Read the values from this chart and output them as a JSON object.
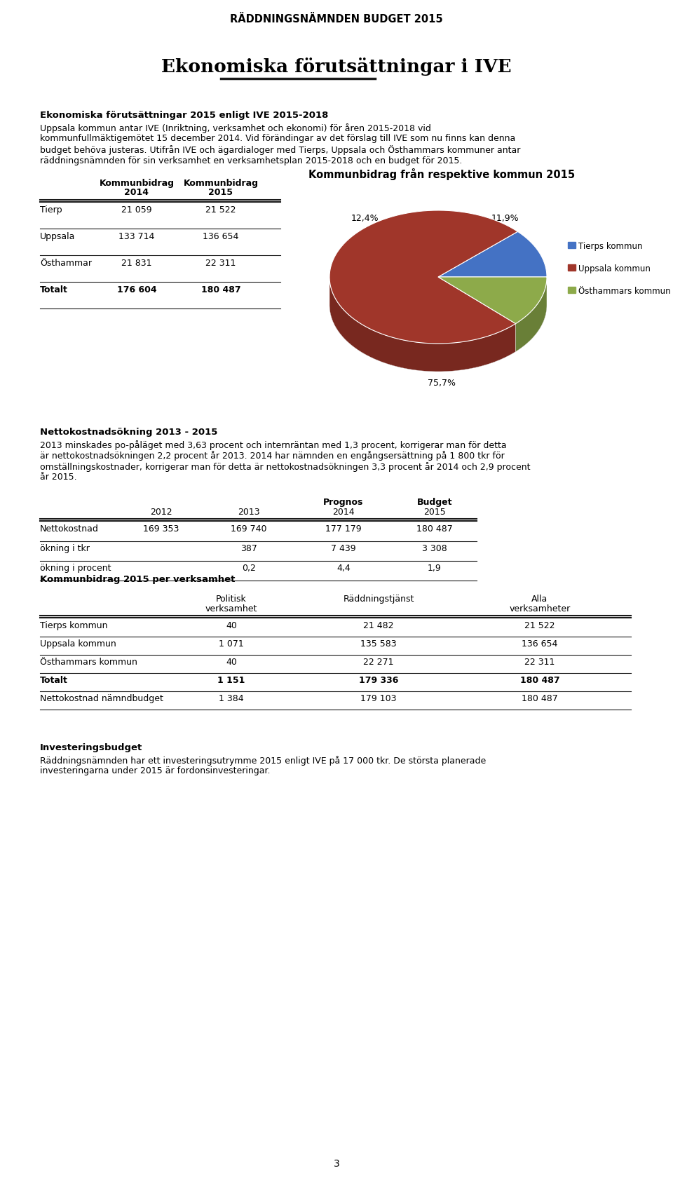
{
  "page_title": "RÄDDNINGSNÄMNDEN BUDGET 2015",
  "section_title": "Ekonomiska förutsättningar i IVE",
  "intro_bold": "Ekonomiska förutsättningar 2015 enligt IVE 2015-2018",
  "intro_lines": [
    "Uppsala kommun antar IVE (Inriktning, verksamhet och ekonomi) för åren 2015-2018 vid",
    "kommunfullmäktigemötet 15 december 2014. Vid förändingar av det förslag till IVE som nu finns kan denna",
    "budget behöva justeras. Utifrån IVE och ägardialoger med Tierps, Uppsala och Östhammars kommuner antar",
    "räddningsnämnden för sin verksamhet en verksamhetsplan 2015-2018 och en budget för 2015."
  ],
  "table_rows": [
    [
      "Tierp",
      "21 059",
      "21 522"
    ],
    [
      "Uppsala",
      "133 714",
      "136 654"
    ],
    [
      "Östhammar",
      "21 831",
      "22 311"
    ],
    [
      "Totalt",
      "176 604",
      "180 487"
    ]
  ],
  "pie_title": "Kommunbidrag från respektive kommun 2015",
  "pie_values": [
    21522,
    136654,
    22311
  ],
  "pie_pct_labels": [
    "11,9%",
    "75,7%",
    "12,4%"
  ],
  "pie_colors": [
    "#4472C4",
    "#A0362A",
    "#8DAA4A"
  ],
  "pie_legend": [
    "Tierps kommun",
    "Uppsala kommun",
    "Östhammars kommun"
  ],
  "netto_title": "Nettokostnadsökning 2013 - 2015",
  "netto_lines": [
    "2013 minskades po-påläget med 3,63 procent och internräntan med 1,3 procent, korrigerar man för detta",
    "är nettokostnadsökningen 2,2 procent år 2013. 2014 har nämnden en engångsersättning på 1 800 tkr för",
    "omställningskostnader, korrigerar man för detta är nettokostnadsökningen 3,3 procent år 2014 och 2,9 procent",
    "år 2015."
  ],
  "netto_table_rows": [
    [
      "Nettokostnad",
      "169 353",
      "169 740",
      "177 179",
      "180 487"
    ],
    [
      "ökning i tkr",
      "",
      "387",
      "7 439",
      "3 308"
    ],
    [
      "ökning i procent",
      "",
      "0,2",
      "4,4",
      "1,9"
    ]
  ],
  "kommunbidrag_title": "Kommunbidrag 2015 per verksamhet",
  "kb_table_rows": [
    [
      "Tierps kommun",
      "40",
      "21 482",
      "21 522"
    ],
    [
      "Uppsala kommun",
      "1 071",
      "135 583",
      "136 654"
    ],
    [
      "Östhammars kommun",
      "40",
      "22 271",
      "22 311"
    ],
    [
      "Totalt",
      "1 151",
      "179 336",
      "180 487"
    ],
    [
      "Nettokostnad nämndbudget",
      "1 384",
      "179 103",
      "180 487"
    ]
  ],
  "invest_title": "Investeringsbudget",
  "invest_lines": [
    "Räddningsnämnden har ett investeringsutrymme 2015 enligt IVE på 17 000 tkr. De största planerade",
    "investeringarna under 2015 är fordonsinvesteringar."
  ],
  "page_number": "3",
  "bg_color": "#FFFFFF"
}
